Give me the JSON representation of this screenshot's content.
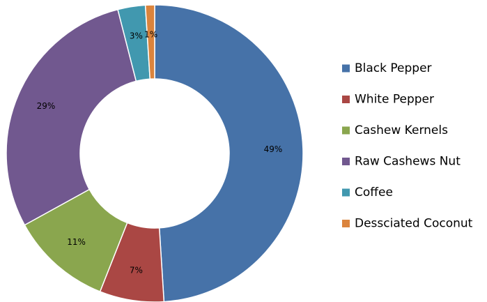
{
  "chart_data": {
    "type": "pie",
    "donut": true,
    "title": "",
    "categories": [
      "Black Pepper",
      "White Pepper",
      "Cashew Kernels",
      "Raw Cashews Nut",
      "Coffee",
      "Dessciated Coconut"
    ],
    "values": [
      49,
      7,
      11,
      29,
      3,
      1
    ],
    "labels": [
      "49%",
      "7%",
      "11%",
      "29%",
      "3%",
      "1%"
    ],
    "colors": [
      "#4672A8",
      "#AA4744",
      "#8AA64E",
      "#71588F",
      "#4198AF",
      "#DB843D"
    ],
    "legend_position": "right"
  }
}
